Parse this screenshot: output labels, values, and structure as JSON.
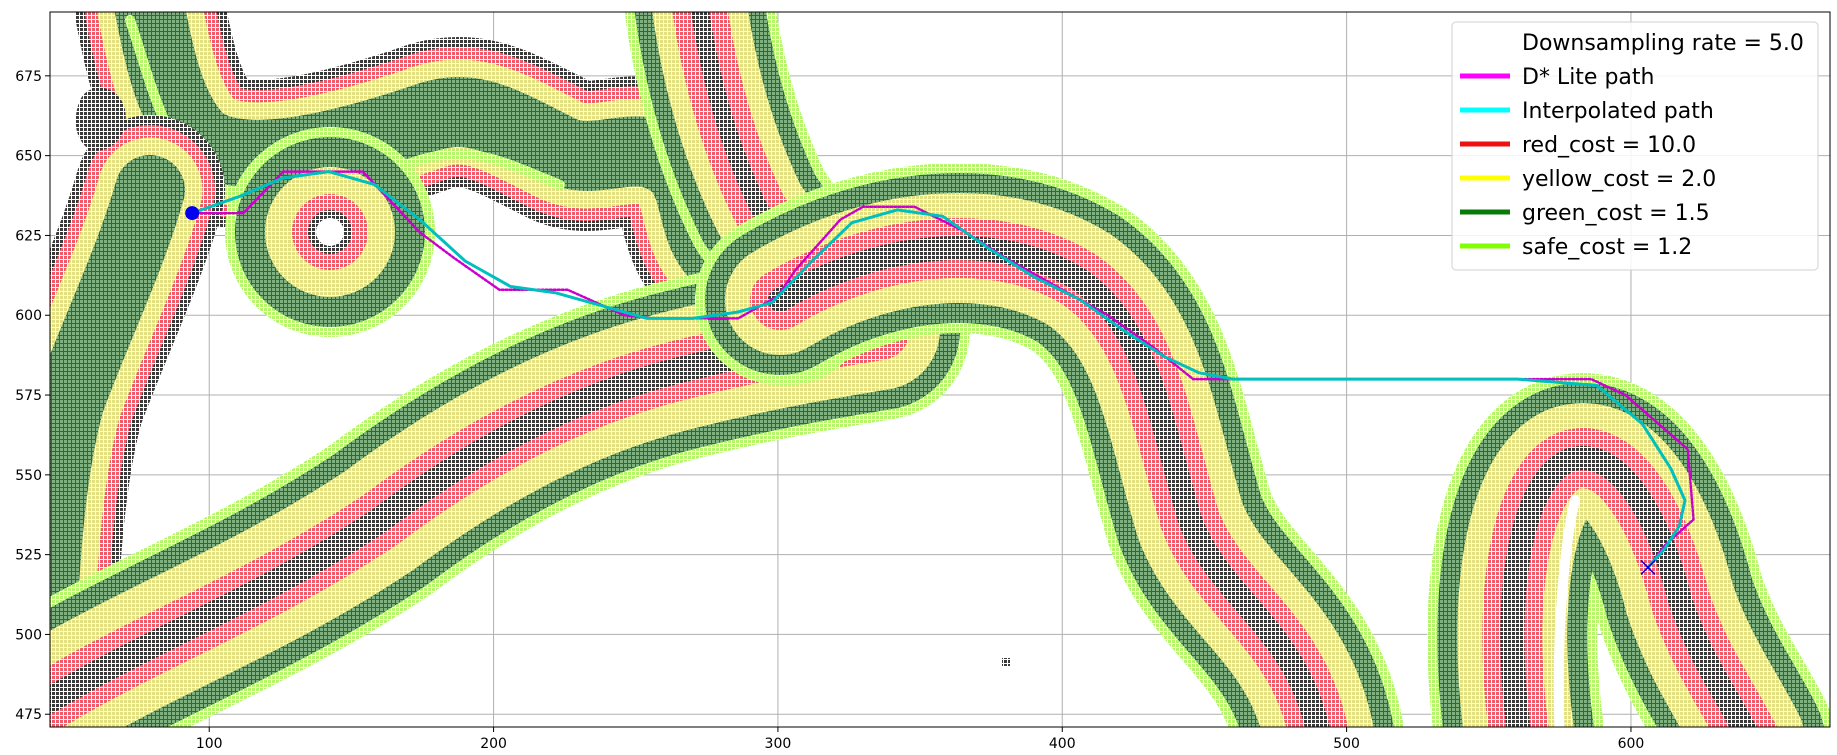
{
  "chart_data": {
    "type": "line",
    "title": "",
    "xlabel": "",
    "ylabel": "",
    "xlim": [
      44,
      670
    ],
    "ylim": [
      471,
      695
    ],
    "xticks": [
      100,
      200,
      300,
      400,
      500,
      600
    ],
    "yticks": [
      475,
      500,
      525,
      550,
      575,
      600,
      625,
      650,
      675
    ],
    "grid": true,
    "legend_position": "top-right",
    "legend": [
      {
        "label": "Downsampling rate = 5.0",
        "color": "none"
      },
      {
        "label": "D* Lite path",
        "color": "#ff00ff"
      },
      {
        "label": "Interpolated path",
        "color": "#00ffff"
      },
      {
        "label": "red_cost = 10.0",
        "color": "#ee1111"
      },
      {
        "label": "yellow_cost = 2.0",
        "color": "#ffff00"
      },
      {
        "label": "green_cost = 1.5",
        "color": "#087a08"
      },
      {
        "label": "safe_cost = 1.2",
        "color": "#80ff00"
      }
    ],
    "start": {
      "x": 94,
      "y": 632
    },
    "goal": {
      "x": 606,
      "y": 521
    },
    "series": [
      {
        "name": "D* Lite path",
        "color": "#cc00cc",
        "x": [
          94,
          112,
          126,
          154,
          174,
          186,
          202,
          222,
          226,
          246,
          256,
          286,
          300,
          306,
          322,
          330,
          348,
          366,
          380,
          396,
          416,
          432,
          446,
          452,
          462,
          480,
          520,
          560,
          586,
          598,
          620,
          622,
          612,
          606
        ],
        "y": [
          632,
          632,
          645,
          645,
          626,
          618,
          608,
          608,
          608,
          600,
          599,
          599,
          606,
          614,
          630,
          634,
          634,
          626,
          618,
          610,
          600,
          590,
          580,
          580,
          580,
          580,
          580,
          580,
          580,
          575,
          558,
          536,
          528,
          521
        ]
      },
      {
        "name": "Interpolated path",
        "color": "#00bfbf",
        "x": [
          94,
          110,
          126,
          142,
          158,
          174,
          190,
          206,
          222,
          238,
          254,
          270,
          286,
          298,
          312,
          326,
          342,
          358,
          374,
          390,
          406,
          422,
          436,
          448,
          460,
          480,
          520,
          560,
          588,
          604,
          614,
          619,
          617,
          612,
          606
        ],
        "y": [
          632,
          637,
          643,
          645,
          641,
          630,
          617,
          609,
          607,
          603,
          599,
          599,
          601,
          604,
          617,
          629,
          633,
          631,
          621,
          612,
          605,
          595,
          587,
          582,
          580,
          580,
          580,
          580,
          578,
          566,
          552,
          542,
          534,
          527,
          521
        ]
      }
    ],
    "obstacle_regions": [
      {
        "name": "upper-left band",
        "cost_layers": [
          "black",
          "red",
          "yellow",
          "green",
          "safe"
        ]
      },
      {
        "name": "ring island",
        "center": [
          145,
          614
        ]
      },
      {
        "name": "central ridge"
      },
      {
        "name": "upper vertical band"
      },
      {
        "name": "right arch"
      },
      {
        "name": "right hook"
      }
    ]
  }
}
